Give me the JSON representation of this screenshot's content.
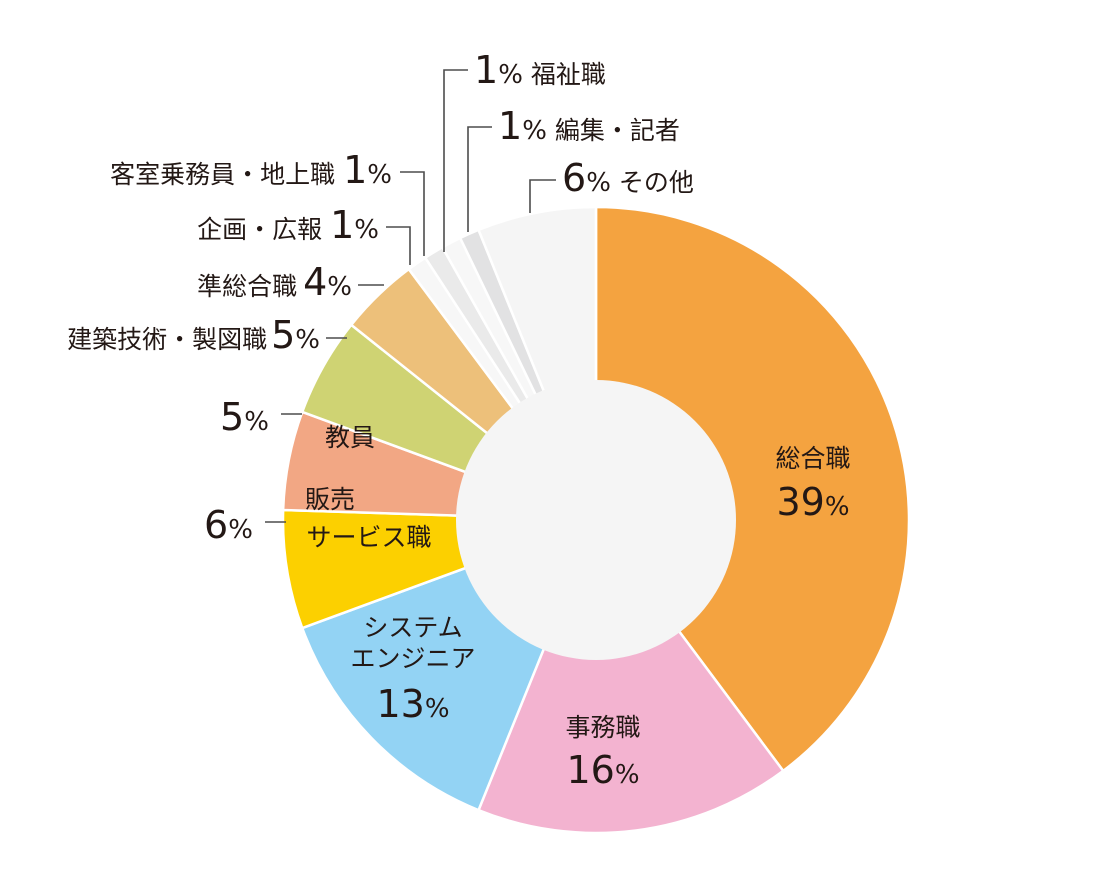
{
  "chart_data": {
    "type": "pie",
    "donut": true,
    "slices": [
      {
        "label": "総合職",
        "value": 39,
        "color": "#F4A340"
      },
      {
        "label": "事務職",
        "value": 16,
        "color": "#F3B3D0"
      },
      {
        "label": "システムエンジニア",
        "value": 13,
        "color": "#93D3F4"
      },
      {
        "label": "販売サービス職",
        "value": 6,
        "color": "#FCD000"
      },
      {
        "label": "教員",
        "value": 5,
        "color": "#F2A784"
      },
      {
        "label": "建築技術・製図職",
        "value": 5,
        "color": "#CFD373"
      },
      {
        "label": "準総合職",
        "value": 4,
        "color": "#EDC07A"
      },
      {
        "label": "企画・広報",
        "value": 1,
        "color": "#F7F7F7"
      },
      {
        "label": "客室乗務員・地上職",
        "value": 1,
        "color": "#EAEAEA"
      },
      {
        "label": "福祉職",
        "value": 1,
        "color": "#F7F7F7"
      },
      {
        "label": "編集・記者",
        "value": 1,
        "color": "#E2E2E3"
      },
      {
        "label": "その他",
        "value": 6,
        "color": "#F5F5F5"
      }
    ],
    "center_color": "#F5F5F5",
    "labels": {
      "sogo": {
        "cat": "総合職",
        "num": "39",
        "pct": "%"
      },
      "jimu": {
        "cat": "事務職",
        "num": "16",
        "pct": "%"
      },
      "se": {
        "cat1": "システム",
        "cat2": "エンジニア",
        "num": "13",
        "pct": "%"
      },
      "hanbai": {
        "cat1": "販売",
        "cat2": "サービス職",
        "num": "6",
        "pct": "%"
      },
      "kyoin": {
        "cat": "教員",
        "num": "5",
        "pct": "%"
      },
      "kenchiku": {
        "cat": "建築技術・製図職",
        "num": "5",
        "pct": "%"
      },
      "junsogo": {
        "cat": "準総合職",
        "num": "4",
        "pct": "%"
      },
      "kikaku": {
        "cat": "企画・広報",
        "num": "1",
        "pct": "%"
      },
      "kyakushitsu": {
        "cat": "客室乗務員・地上職",
        "num": "1",
        "pct": "%"
      },
      "fukushi": {
        "cat": "福祉職",
        "num": "1",
        "pct": "%"
      },
      "henshu": {
        "cat": "編集・記者",
        "num": "1",
        "pct": "%"
      },
      "sonota": {
        "cat": "その他",
        "num": "6",
        "pct": "%"
      }
    }
  }
}
